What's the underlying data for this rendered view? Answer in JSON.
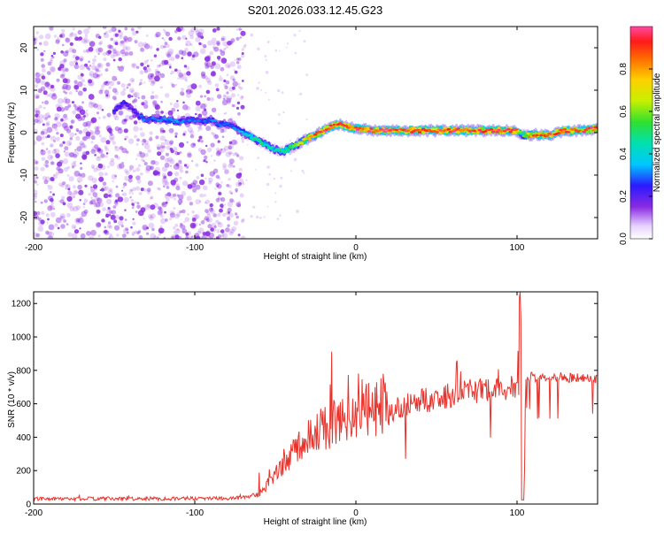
{
  "title": "S201.2026.033.12.45.G23",
  "colors": {
    "snr_line": "#e8332c",
    "ridge_core": "#ff2a2a",
    "noise": "#8a2be2"
  },
  "chart_data": [
    {
      "type": "heatmap",
      "title": "S201.2026.033.12.45.G23",
      "xlabel": "Height of straight line (km)",
      "ylabel": "Frequency (Hz)",
      "xlim": [
        -200,
        150
      ],
      "ylim": [
        -25,
        25
      ],
      "xticks": [
        -200,
        -100,
        0,
        100
      ],
      "xtick_labels": [
        "-200",
        "-100",
        "0",
        "100"
      ],
      "yticks": [
        -20,
        -10,
        0,
        10,
        20
      ],
      "ytick_labels": [
        "-20",
        "-10",
        "0",
        "10",
        "20"
      ],
      "colorbar": {
        "label": "Normalized spectral amplitude",
        "range": [
          0.0,
          1.0
        ],
        "ticks": [
          0.0,
          0.2,
          0.4,
          0.6,
          0.8
        ],
        "tick_labels": [
          "0.0",
          "0.2",
          "0.4",
          "0.6",
          "0.8"
        ]
      },
      "ridge": {
        "x": [
          -150,
          -145,
          -140,
          -135,
          -130,
          -125,
          -120,
          -115,
          -110,
          -105,
          -100,
          -95,
          -90,
          -85,
          -80,
          -75,
          -70,
          -65,
          -60,
          -55,
          -50,
          -45,
          -40,
          -35,
          -30,
          -25,
          -20,
          -15,
          -10,
          -5,
          0,
          10,
          20,
          30,
          40,
          50,
          60,
          70,
          80,
          90,
          100,
          103,
          110,
          120,
          130,
          140,
          150
        ],
        "y": [
          5,
          7,
          6,
          4,
          3,
          3.5,
          3,
          3,
          2.5,
          3,
          3,
          2.5,
          3,
          2,
          2,
          1,
          0,
          -1,
          -2,
          -3,
          -4,
          -4.5,
          -3.5,
          -2.5,
          -1.5,
          -0.5,
          0.5,
          1.5,
          2,
          1.5,
          1,
          0.5,
          0.5,
          0.5,
          0.5,
          0.5,
          0.5,
          0.5,
          0.5,
          0.5,
          0.5,
          -0.5,
          -0.5,
          -0.5,
          0.5,
          0.5,
          1
        ],
        "amplitude": [
          0.25,
          0.25,
          0.2,
          0.25,
          0.3,
          0.3,
          0.3,
          0.35,
          0.3,
          0.3,
          0.3,
          0.3,
          0.3,
          0.3,
          0.3,
          0.3,
          0.35,
          0.45,
          0.5,
          0.45,
          0.45,
          0.5,
          0.55,
          0.65,
          0.75,
          0.85,
          0.9,
          0.95,
          0.95,
          0.9,
          0.9,
          0.9,
          0.95,
          0.92,
          0.92,
          0.92,
          0.95,
          0.9,
          0.92,
          0.95,
          0.92,
          0.5,
          0.9,
          0.92,
          0.95,
          0.92,
          0.9
        ]
      },
      "noise_region": [
        -200,
        -70
      ]
    },
    {
      "type": "line",
      "xlabel": "Height of straight line (km)",
      "ylabel": "SNR (10 * v/v)",
      "xlim": [
        -200,
        150
      ],
      "ylim": [
        0,
        1270
      ],
      "xticks": [
        -200,
        -100,
        0,
        100
      ],
      "xtick_labels": [
        "-200",
        "-100",
        "0",
        "100"
      ],
      "yticks": [
        0,
        200,
        400,
        600,
        800,
        1000,
        1200
      ],
      "ytick_labels": [
        "0",
        "200",
        "400",
        "600",
        "800",
        "1000",
        "1200"
      ],
      "series": [
        {
          "name": "SNR",
          "x": [
            -200,
            -180,
            -160,
            -140,
            -120,
            -100,
            -80,
            -70,
            -60,
            -55,
            -50,
            -45,
            -40,
            -35,
            -30,
            -25,
            -20,
            -15,
            -10,
            -5,
            0,
            5,
            10,
            15,
            20,
            25,
            30,
            40,
            50,
            60,
            70,
            80,
            90,
            95,
            100,
            102,
            104,
            106,
            108,
            110,
            120,
            130,
            140,
            150
          ],
          "y": [
            28,
            28,
            30,
            30,
            30,
            32,
            32,
            35,
            50,
            100,
            160,
            220,
            260,
            300,
            340,
            370,
            400,
            420,
            440,
            460,
            470,
            480,
            500,
            520,
            550,
            580,
            600,
            620,
            640,
            660,
            680,
            690,
            700,
            705,
            720,
            850,
            30,
            750,
            760,
            760,
            760,
            760,
            750,
            750
          ]
        }
      ]
    }
  ]
}
